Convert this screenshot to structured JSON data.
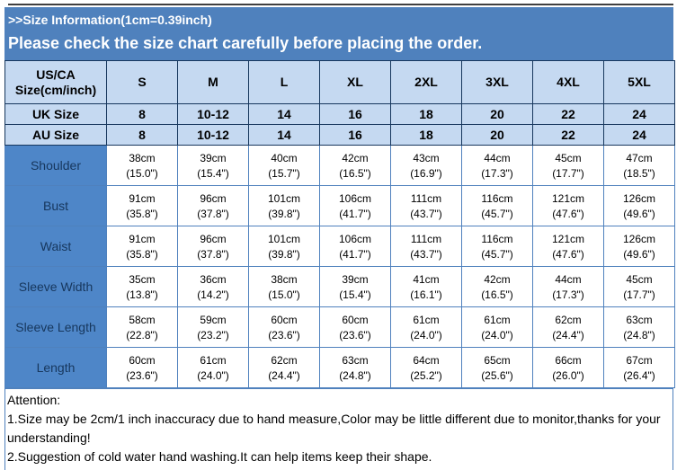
{
  "header": {
    "title": ">>Size Information(1cm=0.39inch)",
    "notice": "Please check the size chart carefully before placing the order."
  },
  "table": {
    "corner_label": "US/CA Size(cm/inch)",
    "size_columns": [
      "S",
      "M",
      "L",
      "XL",
      "2XL",
      "3XL",
      "4XL",
      "5XL"
    ],
    "size_rows": [
      {
        "label": "UK Size",
        "values": [
          "8",
          "10-12",
          "14",
          "16",
          "18",
          "20",
          "22",
          "24"
        ]
      },
      {
        "label": "AU Size",
        "values": [
          "8",
          "10-12",
          "14",
          "16",
          "18",
          "20",
          "22",
          "24"
        ]
      }
    ],
    "measurement_rows": [
      {
        "label": "Shoulder",
        "cm": [
          "38cm",
          "39cm",
          "40cm",
          "42cm",
          "43cm",
          "44cm",
          "45cm",
          "47cm"
        ],
        "inch": [
          "(15.0\")",
          "(15.4\")",
          "(15.7\")",
          "(16.5\")",
          "(16.9\")",
          "(17.3\")",
          "(17.7\")",
          "(18.5\")"
        ]
      },
      {
        "label": "Bust",
        "cm": [
          "91cm",
          "96cm",
          "101cm",
          "106cm",
          "111cm",
          "116cm",
          "121cm",
          "126cm"
        ],
        "inch": [
          "(35.8\")",
          "(37.8\")",
          "(39.8\")",
          "(41.7\")",
          "(43.7\")",
          "(45.7\")",
          "(47.6\")",
          "(49.6\")"
        ]
      },
      {
        "label": "Waist",
        "cm": [
          "91cm",
          "96cm",
          "101cm",
          "106cm",
          "111cm",
          "116cm",
          "121cm",
          "126cm"
        ],
        "inch": [
          "(35.8\")",
          "(37.8\")",
          "(39.8\")",
          "(41.7\")",
          "(43.7\")",
          "(45.7\")",
          "(47.6\")",
          "(49.6\")"
        ]
      },
      {
        "label": "Sleeve Width",
        "cm": [
          "35cm",
          "36cm",
          "38cm",
          "39cm",
          "41cm",
          "42cm",
          "44cm",
          "45cm"
        ],
        "inch": [
          "(13.8\")",
          "(14.2\")",
          "(15.0\")",
          "(15.4\")",
          "(16.1\")",
          "(16.5\")",
          "(17.3\")",
          "(17.7\")"
        ]
      },
      {
        "label": "Sleeve Length",
        "cm": [
          "58cm",
          "59cm",
          "60cm",
          "60cm",
          "61cm",
          "61cm",
          "62cm",
          "63cm"
        ],
        "inch": [
          "(22.8\")",
          "(23.2\")",
          "(23.6\")",
          "(23.6\")",
          "(24.0\")",
          "(24.0\")",
          "(24.4\")",
          "(24.8\")"
        ]
      },
      {
        "label": "Length",
        "cm": [
          "60cm",
          "61cm",
          "62cm",
          "63cm",
          "64cm",
          "65cm",
          "66cm",
          "67cm"
        ],
        "inch": [
          "(23.6\")",
          "(24.0\")",
          "(24.4\")",
          "(24.8\")",
          "(25.2\")",
          "(25.6\")",
          "(26.0\")",
          "(26.4\")"
        ]
      }
    ]
  },
  "attention": {
    "title": "Attention:",
    "line1": "1.Size may be 2cm/1 inch inaccuracy due to hand measure,Color may be little different due to monitor,thanks for your understanding!",
    "line2": "2.Suggestion of cold water hand washing.It can help items keep their shape."
  },
  "colors": {
    "banner_blue": "#4F81BD",
    "header_light_blue": "#C5D9F1",
    "label_blue": "#4E86C8",
    "dark_border": "#17375D",
    "data_border": "#4F81BD",
    "label_text": "#17375D"
  }
}
